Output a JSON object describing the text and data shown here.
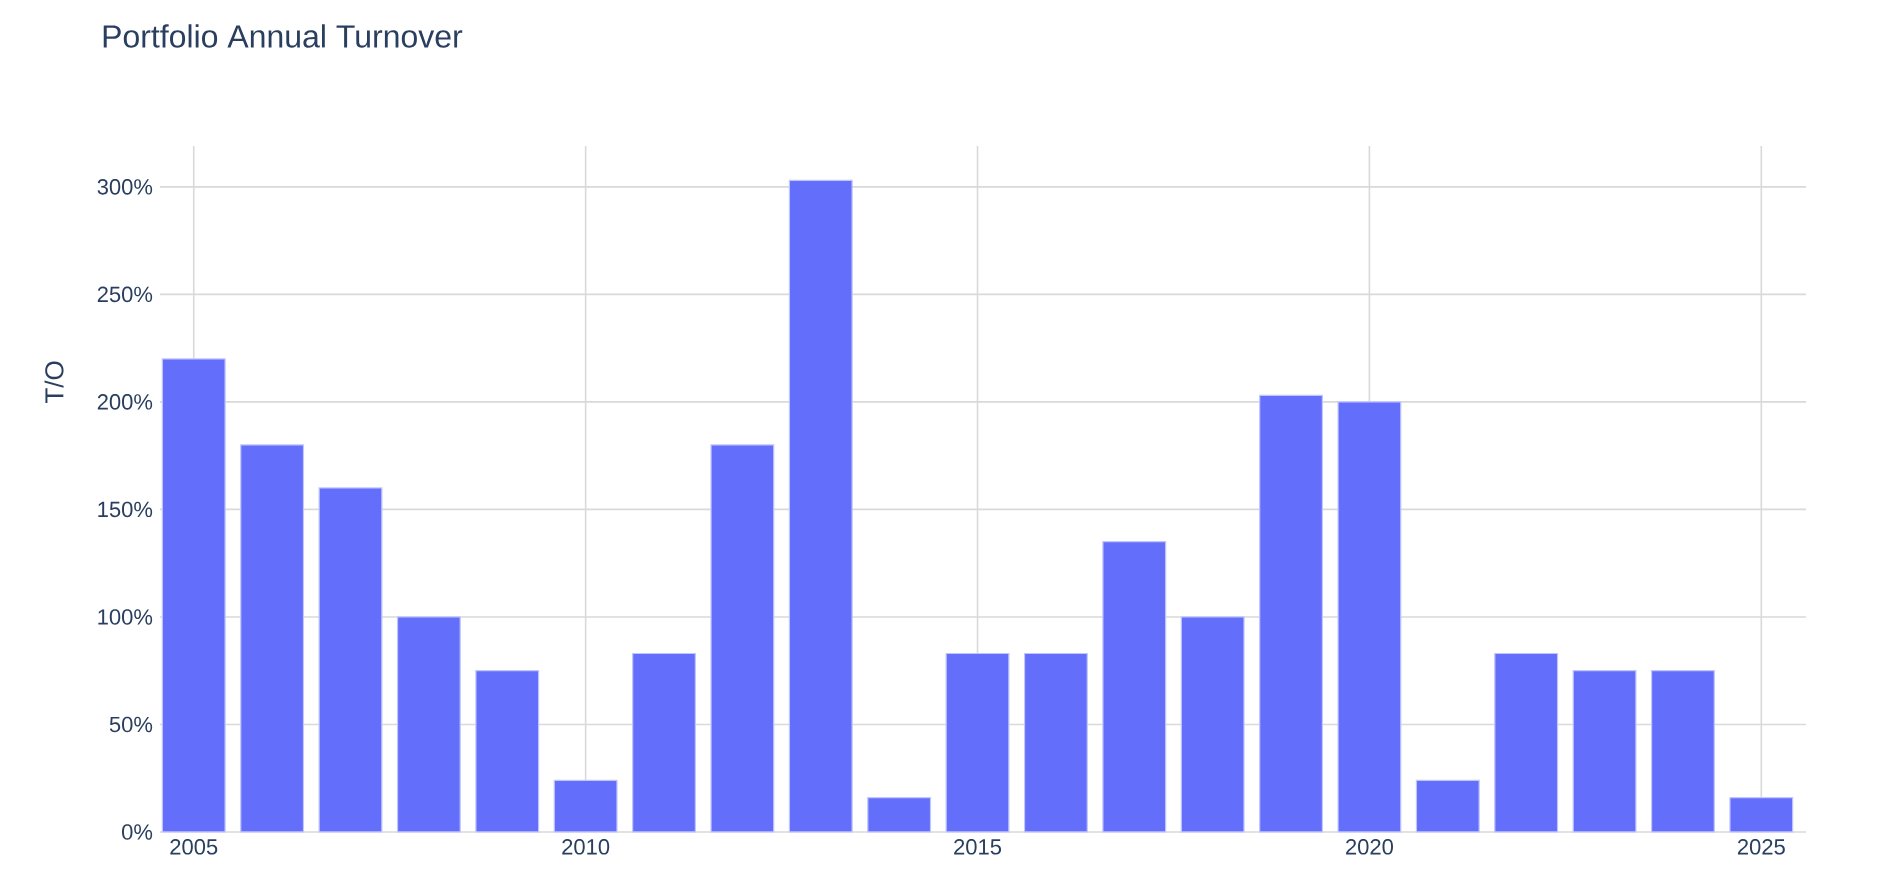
{
  "chart_data": {
    "type": "bar",
    "title": "Portfolio Annual Turnover",
    "ylabel": "T/O",
    "x": [
      2005,
      2006,
      2007,
      2008,
      2009,
      2010,
      2011,
      2012,
      2013,
      2014,
      2015,
      2016,
      2017,
      2018,
      2019,
      2020,
      2021,
      2022,
      2023,
      2024,
      2025
    ],
    "values": [
      220,
      180,
      160,
      100,
      75,
      24,
      83,
      180,
      303,
      16,
      83,
      83,
      135,
      100,
      203,
      200,
      24,
      83,
      75,
      75,
      16
    ],
    "color": "#636efa",
    "xlim": [
      2004.57,
      2025.57
    ],
    "xticks": [
      2005,
      2010,
      2015,
      2020,
      2025
    ],
    "ylim": [
      0,
      319
    ],
    "yticks": [
      {
        "value": 0,
        "label": "0%"
      },
      {
        "value": 50,
        "label": "50%"
      },
      {
        "value": 100,
        "label": "100%"
      },
      {
        "value": 150,
        "label": "150%"
      },
      {
        "value": 200,
        "label": "200%"
      },
      {
        "value": 250,
        "label": "250%"
      },
      {
        "value": 300,
        "label": "300%"
      }
    ],
    "grid": true
  }
}
